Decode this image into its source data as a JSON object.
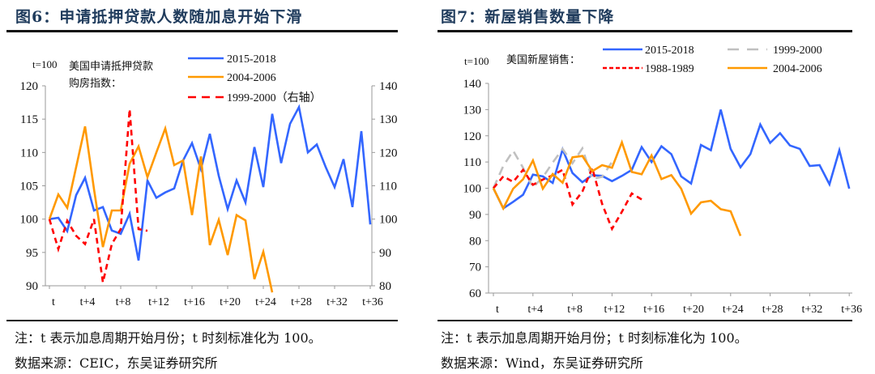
{
  "figures": [
    {
      "title": "图6：申请抵押贷款人数随加息开始下滑",
      "note": "注：t 表示加息周期开始月份；t 时刻标准化为 100。",
      "source": "数据来源：CEIC，东吴证券研究所"
    },
    {
      "title": "图7：新屋销售数量下降",
      "note": "注：t 表示加息周期开始月份；t 时刻标准化为 100。",
      "source": "数据来源：Wind，东吴证券研究所"
    }
  ],
  "chart_data": [
    {
      "type": "line",
      "title": "美国申请抵押贷款购房指数：",
      "title_lines": [
        "美国申请抵押贷款",
        "购房指数："
      ],
      "ylabel": "t=100",
      "ylim": [
        90,
        120
      ],
      "yticks": [
        "90",
        "95",
        "100",
        "105",
        "110",
        "115",
        "120"
      ],
      "y2lim": [
        80,
        140
      ],
      "y2ticks": [
        "80",
        "90",
        "100",
        "110",
        "120",
        "130",
        "140"
      ],
      "xticks": [
        "t",
        "t+4",
        "t+8",
        "t+12",
        "t+16",
        "t+20",
        "t+24",
        "t+28",
        "t+32",
        "t+36"
      ],
      "xmax": 37,
      "grid": false,
      "series": [
        {
          "name": "2015-2018",
          "color": "#3366ff",
          "dash": "solid",
          "axis": "left",
          "values": [
            100,
            100.2,
            98.2,
            103.6,
            106.2,
            101.3,
            101.8,
            98.3,
            97.8,
            100.8,
            93.8,
            105.8,
            103.2,
            104,
            104.6,
            108.8,
            111.4,
            107.5,
            112.8,
            106.5,
            101.5,
            105.8,
            102.5,
            110.8,
            104.8,
            115.8,
            108.4,
            114.3,
            116.8,
            110,
            111.2,
            107.8,
            104.8,
            109,
            101.8,
            113.2,
            99.2
          ]
        },
        {
          "name": "2004-2006",
          "color": "#ff9900",
          "dash": "solid",
          "axis": "left",
          "values": [
            100,
            103.7,
            101.7,
            107.8,
            113.9,
            104.5,
            95.8,
            101.3,
            101.3,
            108.3,
            110.9,
            106.3,
            110,
            113.6,
            108.1,
            108.8,
            100.6,
            109.4,
            96.1,
            99.9,
            94.6,
            100.6,
            99.8,
            91,
            95.1,
            89
          ]
        },
        {
          "name": "1999-2000（右轴）",
          "color": "#ff0000",
          "dash": "dashed",
          "axis": "right",
          "values": [
            100,
            91,
            99.5,
            95,
            92.5,
            100,
            81,
            92.5,
            97,
            133,
            97,
            96.5
          ]
        }
      ]
    },
    {
      "type": "line",
      "title": "美国新屋销售：",
      "ylabel": "t=100",
      "ylim": [
        60,
        140
      ],
      "yticks": [
        "60",
        "70",
        "80",
        "90",
        "100",
        "110",
        "120",
        "130",
        "140"
      ],
      "xticks": [
        "t",
        "t+4",
        "t+8",
        "t+12",
        "t+16",
        "t+20",
        "t+24",
        "t+28",
        "t+32",
        "t+36"
      ],
      "xmax": 36,
      "grid": false,
      "series": [
        {
          "name": "2015-2018",
          "color": "#3366ff",
          "dash": "solid",
          "values": [
            100,
            92.3,
            94.8,
            97.5,
            105.2,
            104.5,
            102,
            114.8,
            105.8,
            102.3,
            105,
            104.7,
            102.7,
            104.7,
            107,
            115.7,
            110,
            116,
            113,
            104.5,
            101.8,
            116.5,
            114.5,
            130,
            115,
            108,
            113,
            124.3,
            117.3,
            121,
            116.3,
            115,
            108.5,
            108.8,
            101.5,
            114.5,
            99.8
          ]
        },
        {
          "name": "1999-2000",
          "color": "#c0c0c0",
          "dash": "longdash",
          "values": [
            100,
            108.5,
            114.3,
            107.8,
            100.3,
            104.2,
            109.8,
            115,
            109.5,
            115.2,
            103.5,
            104.4,
            110
          ]
        },
        {
          "name": "1988-1989",
          "color": "#ff0000",
          "dash": "dashed",
          "values": [
            100,
            104.5,
            102.4,
            107,
            101.3,
            103.3,
            104.9,
            107,
            93.8,
            98.7,
            107.7,
            94,
            84.5,
            91,
            98,
            95.7
          ]
        },
        {
          "name": "2004-2006",
          "color": "#ff9900",
          "dash": "solid",
          "values": [
            100,
            92.3,
            99.8,
            103.4,
            110.6,
            99.8,
            105.4,
            102.1,
            111.8,
            112.3,
            106.5,
            108.8,
            107.8,
            117.5,
            106.2,
            105.3,
            112.5,
            103.5,
            105,
            99.8,
            90.3,
            94.6,
            95.2,
            92,
            91.2,
            81.8
          ]
        }
      ]
    }
  ]
}
